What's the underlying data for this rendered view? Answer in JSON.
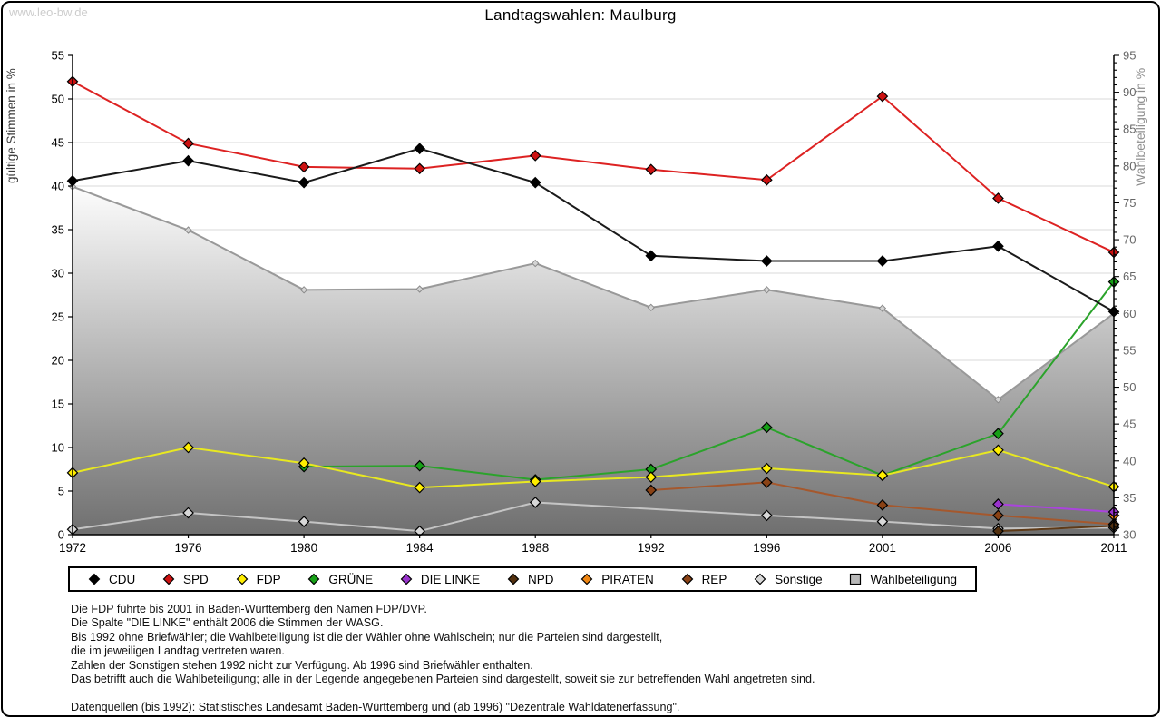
{
  "watermark": "www.leo-bw.de",
  "title": "Landtagswahlen: Maulburg",
  "chart_data": {
    "type": "line",
    "title": "Landtagswahlen: Maulburg",
    "categories": [
      "1972",
      "1976",
      "1980",
      "1984",
      "1988",
      "1992",
      "1996",
      "2001",
      "2006",
      "2011"
    ],
    "y_left": {
      "label": "gültige Stimmen in %",
      "min": 0,
      "max": 55,
      "tick_step": 5
    },
    "y_right": {
      "label": "Wahlbeteiligung in %",
      "min": 30,
      "max": 95,
      "tick_step": 5,
      "minor_step": 1
    },
    "grid": true,
    "legend_position": "bottom",
    "series": [
      {
        "name": "CDU",
        "axis": "left",
        "marker": "diamond",
        "line_color": "#1a1a1a",
        "marker_color": "#000000",
        "values": [
          40.6,
          42.9,
          40.4,
          44.3,
          40.4,
          32.0,
          31.4,
          31.4,
          33.1,
          25.6
        ]
      },
      {
        "name": "SPD",
        "axis": "left",
        "marker": "diamond",
        "line_color": "#dd2222",
        "marker_color": "#cc1111",
        "values": [
          52.0,
          44.9,
          42.2,
          42.0,
          43.5,
          41.9,
          40.7,
          50.3,
          38.6,
          32.4
        ]
      },
      {
        "name": "FDP",
        "axis": "left",
        "marker": "diamond",
        "line_color": "#e8e820",
        "marker_color": "#ffee00",
        "values": [
          7.1,
          10.0,
          8.2,
          5.4,
          6.1,
          6.6,
          7.6,
          6.8,
          9.7,
          5.5
        ]
      },
      {
        "name": "GRÜNE",
        "axis": "left",
        "marker": "diamond",
        "line_color": "#2ba32b",
        "marker_color": "#17a017",
        "values": [
          null,
          null,
          7.8,
          7.9,
          6.3,
          7.5,
          12.3,
          6.8,
          11.6,
          29.0
        ]
      },
      {
        "name": "DIE LINKE",
        "axis": "left",
        "marker": "diamond",
        "line_color": "#aa44dd",
        "marker_color": "#9933cc",
        "values": [
          null,
          null,
          null,
          null,
          null,
          null,
          null,
          null,
          3.5,
          2.6
        ]
      },
      {
        "name": "NPD",
        "axis": "left",
        "marker": "diamond",
        "line_color": "#5e3a17",
        "marker_color": "#53300f",
        "values": [
          null,
          null,
          null,
          null,
          null,
          null,
          null,
          null,
          0.4,
          1.0
        ]
      },
      {
        "name": "PIRATEN",
        "axis": "left",
        "marker": "diamond",
        "line_color": "#ef8f1f",
        "marker_color": "#ee8512",
        "values": [
          null,
          null,
          null,
          null,
          null,
          null,
          null,
          null,
          null,
          2.2
        ]
      },
      {
        "name": "REP",
        "axis": "left",
        "marker": "diamond",
        "line_color": "#a5582d",
        "marker_color": "#8a4215",
        "values": [
          null,
          null,
          null,
          null,
          null,
          5.1,
          6.0,
          3.4,
          2.2,
          1.2
        ]
      },
      {
        "name": "Sonstige",
        "axis": "left",
        "marker": "diamond",
        "line_color": "#c4c4c4",
        "marker_color": "#d8d8d8",
        "values": [
          0.6,
          2.5,
          1.5,
          0.4,
          3.7,
          null,
          2.2,
          1.5,
          0.7,
          0.8
        ]
      },
      {
        "name": "Wahlbeteiligung",
        "axis": "right",
        "marker": "square",
        "type": "area",
        "area_gradient_top": "#ffffff",
        "area_gradient_bottom": "#6f6f6f",
        "edge_color": "#999999",
        "marker_color": "#d4d4d4",
        "values": [
          77.2,
          71.3,
          63.2,
          63.3,
          66.8,
          60.8,
          63.2,
          60.7,
          48.3,
          60.0
        ]
      }
    ]
  },
  "footnotes": [
    "Die FDP führte bis 2001 in Baden-Württemberg den Namen FDP/DVP.",
    "Die Spalte \"DIE LINKE\" enthält 2006 die Stimmen der WASG.",
    "Bis 1992 ohne Briefwähler; die Wahlbeteiligung ist die der Wähler ohne Wahlschein; nur die Parteien sind dargestellt,",
    "die im jeweiligen Landtag vertreten waren.",
    "Zahlen der Sonstigen stehen 1992 nicht zur Verfügung. Ab 1996 sind Briefwähler enthalten.",
    "Das betrifft auch die Wahlbeteiligung; alle in der Legende angegebenen Parteien sind dargestellt, soweit sie zur betreffenden Wahl angetreten sind.",
    "",
    "Datenquellen (bis 1992): Statistisches Landesamt Baden-Württemberg und (ab 1996) \"Dezentrale Wahldatenerfassung\"."
  ]
}
